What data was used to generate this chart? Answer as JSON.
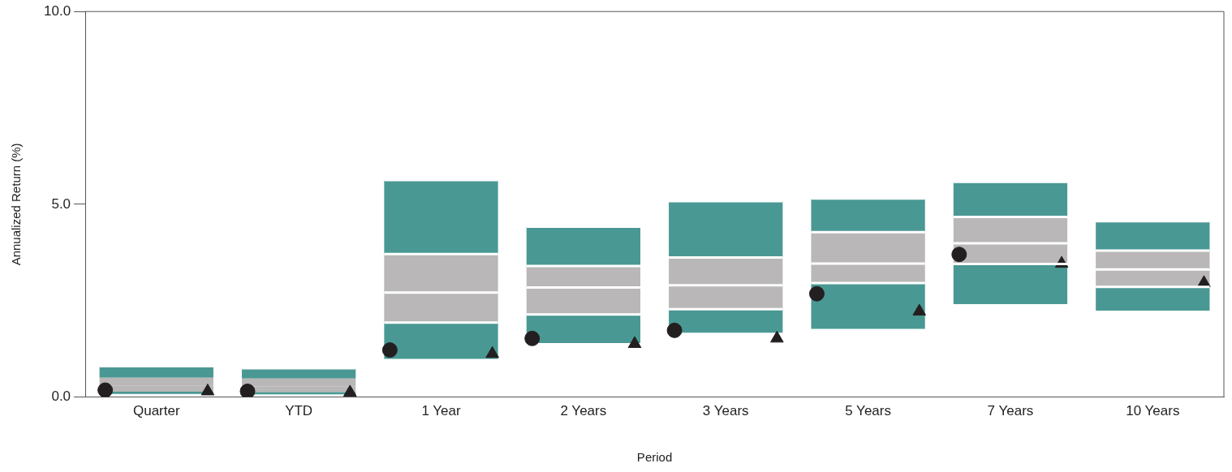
{
  "chart_data": {
    "type": "bar",
    "xlabel": "Period",
    "ylabel": "Annualized Return (%)",
    "categories": [
      "Quarter",
      "YTD",
      "1 Year",
      "2 Years",
      "3 Years",
      "5 Years",
      "7 Years",
      "10 Years"
    ],
    "series": [
      {
        "color": "#4a9893",
        "base": [
          0.08,
          0.07,
          0.99,
          1.4,
          1.67,
          1.77,
          2.41,
          2.24
        ],
        "values": [
          0.06,
          0.06,
          0.94,
          0.74,
          0.61,
          1.19,
          1.04,
          0.62
        ]
      },
      {
        "color": "#b9b7b7",
        "base": [
          0.14,
          0.13,
          1.93,
          2.14,
          2.28,
          2.96,
          3.45,
          2.86
        ],
        "values": [
          0.16,
          0.15,
          0.78,
          0.7,
          0.62,
          0.5,
          0.54,
          0.45
        ]
      },
      {
        "color": "#b9b7b7",
        "base": [
          0.3,
          0.28,
          2.71,
          2.84,
          2.9,
          3.46,
          3.99,
          3.31
        ],
        "values": [
          0.2,
          0.2,
          1.0,
          0.56,
          0.72,
          0.82,
          0.68,
          0.49
        ]
      },
      {
        "color": "#4a9893",
        "base": [
          0.5,
          0.48,
          3.71,
          3.4,
          3.62,
          4.28,
          4.67,
          3.8
        ],
        "values": [
          0.3,
          0.27,
          1.92,
          1.02,
          1.46,
          0.87,
          0.91,
          0.76
        ]
      },
      {
        "type": "scatter",
        "marker": "circle",
        "color": "#231f20",
        "values": [
          0.18,
          0.15,
          1.22,
          1.52,
          1.73,
          2.68,
          3.7,
          null
        ]
      },
      {
        "type": "scatter",
        "marker": "triangle",
        "color": "#231f20",
        "values": [
          0.15,
          0.12,
          1.12,
          1.38,
          1.52,
          2.22,
          3.46,
          2.96
        ]
      }
    ],
    "ylim": [
      0,
      10
    ],
    "yticks": [
      {
        "value": 0,
        "label": "0.0"
      },
      {
        "value": 5,
        "label": "5.0"
      },
      {
        "value": 10,
        "label": "10.0"
      }
    ],
    "grid": false,
    "legend": false
  }
}
